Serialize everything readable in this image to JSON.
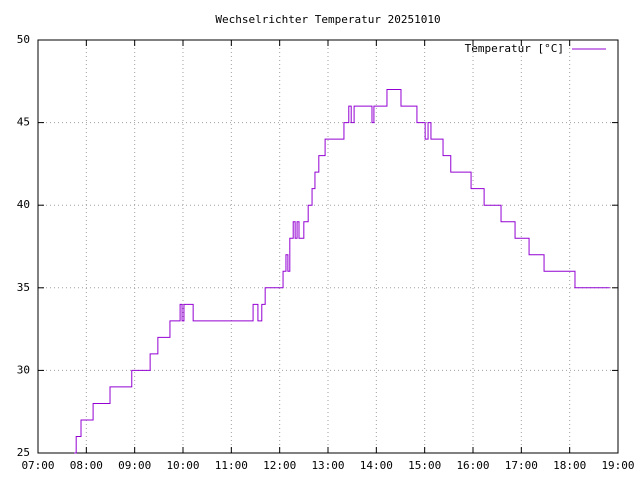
{
  "chart_data": {
    "type": "line",
    "title": "Wechselrichter Temperatur 20251010",
    "step": "post",
    "grid": true,
    "legend": "top-right",
    "xlim": [
      7,
      19
    ],
    "xticks": [
      {
        "value": 7,
        "label": "07:00"
      },
      {
        "value": 8,
        "label": "08:00"
      },
      {
        "value": 9,
        "label": "09:00"
      },
      {
        "value": 10,
        "label": "10:00"
      },
      {
        "value": 11,
        "label": "11:00"
      },
      {
        "value": 12,
        "label": "12:00"
      },
      {
        "value": 13,
        "label": "13:00"
      },
      {
        "value": 14,
        "label": "14:00"
      },
      {
        "value": 15,
        "label": "15:00"
      },
      {
        "value": 16,
        "label": "16:00"
      },
      {
        "value": 17,
        "label": "17:00"
      },
      {
        "value": 18,
        "label": "18:00"
      },
      {
        "value": 19,
        "label": "19:00"
      }
    ],
    "ylim": [
      25,
      50
    ],
    "yticks": [
      25,
      30,
      35,
      40,
      45,
      50
    ],
    "series": [
      {
        "name": "Temperatur [°C]",
        "color": "#9400d3",
        "x": [
          7.75,
          7.79,
          7.89,
          8.14,
          8.49,
          8.94,
          9.32,
          9.48,
          9.73,
          9.94,
          9.98,
          10.02,
          10.21,
          11.45,
          11.55,
          11.63,
          11.7,
          12.07,
          12.13,
          12.17,
          12.21,
          12.28,
          12.32,
          12.36,
          12.4,
          12.5,
          12.59,
          12.67,
          12.73,
          12.81,
          12.94,
          13.33,
          13.43,
          13.48,
          13.54,
          13.91,
          13.95,
          14.22,
          14.51,
          14.84,
          15.01,
          15.07,
          15.13,
          15.38,
          15.54,
          15.96,
          16.23,
          16.58,
          16.87,
          17.16,
          17.47,
          18.11,
          18.83
        ],
        "values": [
          25,
          26,
          27,
          28,
          29,
          30,
          31,
          32,
          33,
          34,
          33,
          34,
          33,
          34,
          33,
          34,
          35,
          36,
          37,
          36,
          38,
          39,
          38,
          39,
          38,
          39,
          40,
          41,
          42,
          43,
          44,
          45,
          46,
          45,
          46,
          45,
          46,
          47,
          46,
          45,
          44,
          45,
          44,
          43,
          42,
          41,
          40,
          39,
          38,
          37,
          36,
          35,
          35
        ]
      }
    ]
  }
}
